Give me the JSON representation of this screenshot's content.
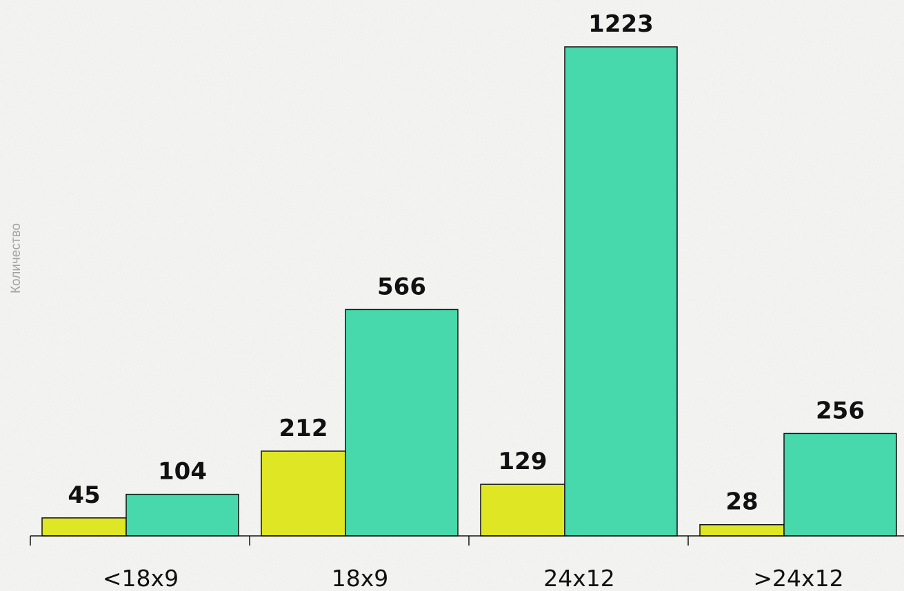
{
  "chart_data": {
    "type": "bar",
    "title": "",
    "xlabel": "",
    "ylabel": "Количество",
    "categories": [
      "<18x9",
      "18x9",
      "24x12",
      ">24x12"
    ],
    "series": [
      {
        "values": [
          45,
          212,
          129,
          28
        ]
      },
      {
        "values": [
          104,
          566,
          1223,
          256
        ]
      }
    ],
    "ylim": [
      0,
      1223
    ],
    "grid": false,
    "legend": "none"
  },
  "colors": {
    "series": [
      "#dfe623",
      "#47d8ab"
    ],
    "bar_edge": "#111111",
    "axis": "#111111",
    "background": "#f3f3f1"
  }
}
